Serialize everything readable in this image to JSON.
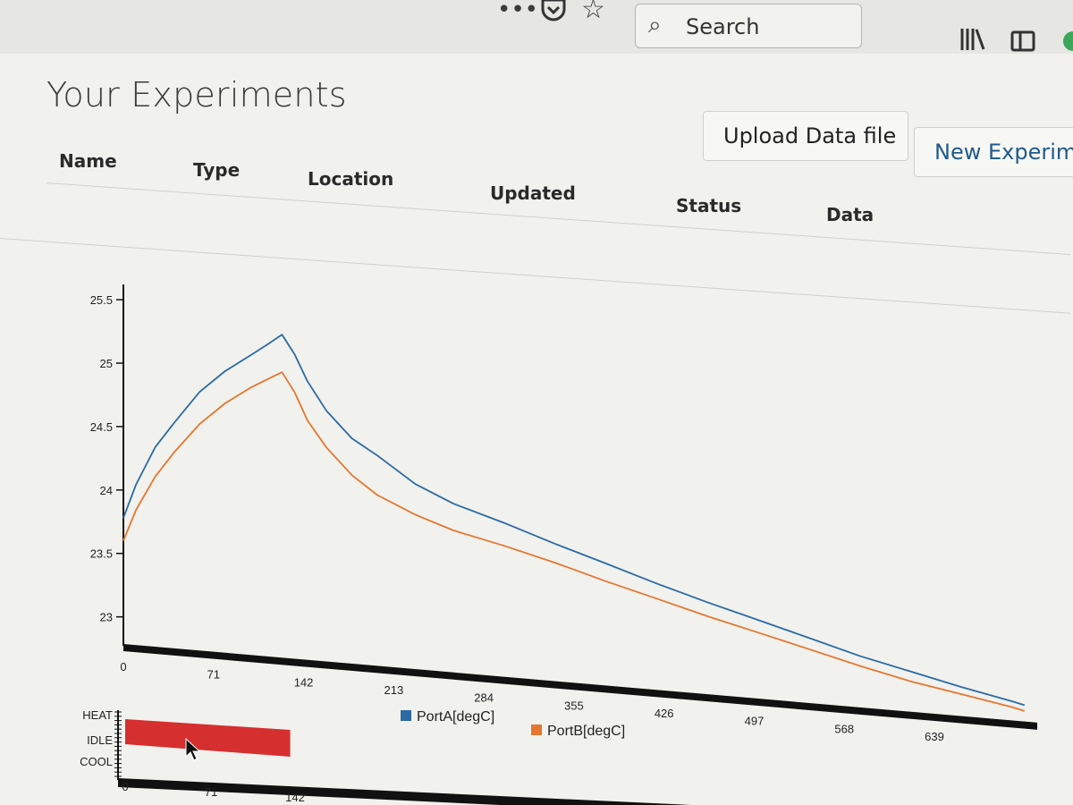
{
  "browser": {
    "search_placeholder": "Search",
    "more_icon": "ellipsis-icon",
    "pocket_icon": "pocket-icon",
    "star_icon": "star-icon",
    "library_icon": "library-icon",
    "sidebar_icon": "sidebar-icon"
  },
  "page": {
    "title": "Your Experiments",
    "upload_label": "Upload Data file",
    "new_label": "New Experim",
    "columns": [
      "Name",
      "Type",
      "Location",
      "Updated",
      "Status",
      "Data"
    ]
  },
  "colors": {
    "portA": "#2b6aa3",
    "portB": "#e5772e",
    "control_bar": "#d62f2f"
  },
  "chart_data": {
    "type": "line",
    "xlabel": "",
    "ylabel": "",
    "ylim": [
      22.8,
      25.55
    ],
    "xlim": [
      0,
      720
    ],
    "y_ticks": [
      "25.5",
      "25",
      "24.5",
      "24",
      "23.5",
      "23"
    ],
    "x_ticks": [
      "0",
      "71",
      "142",
      "213",
      "284",
      "355",
      "426",
      "497",
      "568",
      "639"
    ],
    "series": [
      {
        "name": "PortA[degC]",
        "x": [
          0,
          10,
          25,
          40,
          60,
          80,
          100,
          115,
          125,
          135,
          145,
          160,
          180,
          200,
          230,
          260,
          300,
          340,
          380,
          420,
          460,
          500,
          540,
          580,
          620,
          660,
          700,
          710
        ],
        "y": [
          23.78,
          24.05,
          24.35,
          24.55,
          24.8,
          24.97,
          25.1,
          25.2,
          25.27,
          25.12,
          24.92,
          24.7,
          24.5,
          24.38,
          24.18,
          24.05,
          23.93,
          23.8,
          23.68,
          23.56,
          23.45,
          23.35,
          23.25,
          23.15,
          23.07,
          22.99,
          22.92,
          22.9
        ]
      },
      {
        "name": "PortB[degC]",
        "x": [
          0,
          10,
          25,
          40,
          60,
          80,
          100,
          115,
          125,
          135,
          145,
          160,
          180,
          200,
          230,
          260,
          300,
          340,
          380,
          420,
          460,
          500,
          540,
          580,
          620,
          660,
          700,
          710
        ],
        "y": [
          23.6,
          23.85,
          24.12,
          24.32,
          24.55,
          24.72,
          24.85,
          24.93,
          24.98,
          24.83,
          24.62,
          24.42,
          24.22,
          24.08,
          23.95,
          23.85,
          23.76,
          23.66,
          23.55,
          23.45,
          23.35,
          23.26,
          23.17,
          23.08,
          23.0,
          22.94,
          22.88,
          22.86
        ]
      }
    ],
    "legend": "bottom-center",
    "control": {
      "levels": [
        "HEAT",
        "IDLE",
        "COOL"
      ],
      "x_ticks": [
        "0",
        "71",
        "142"
      ],
      "heat_until": 130
    }
  }
}
